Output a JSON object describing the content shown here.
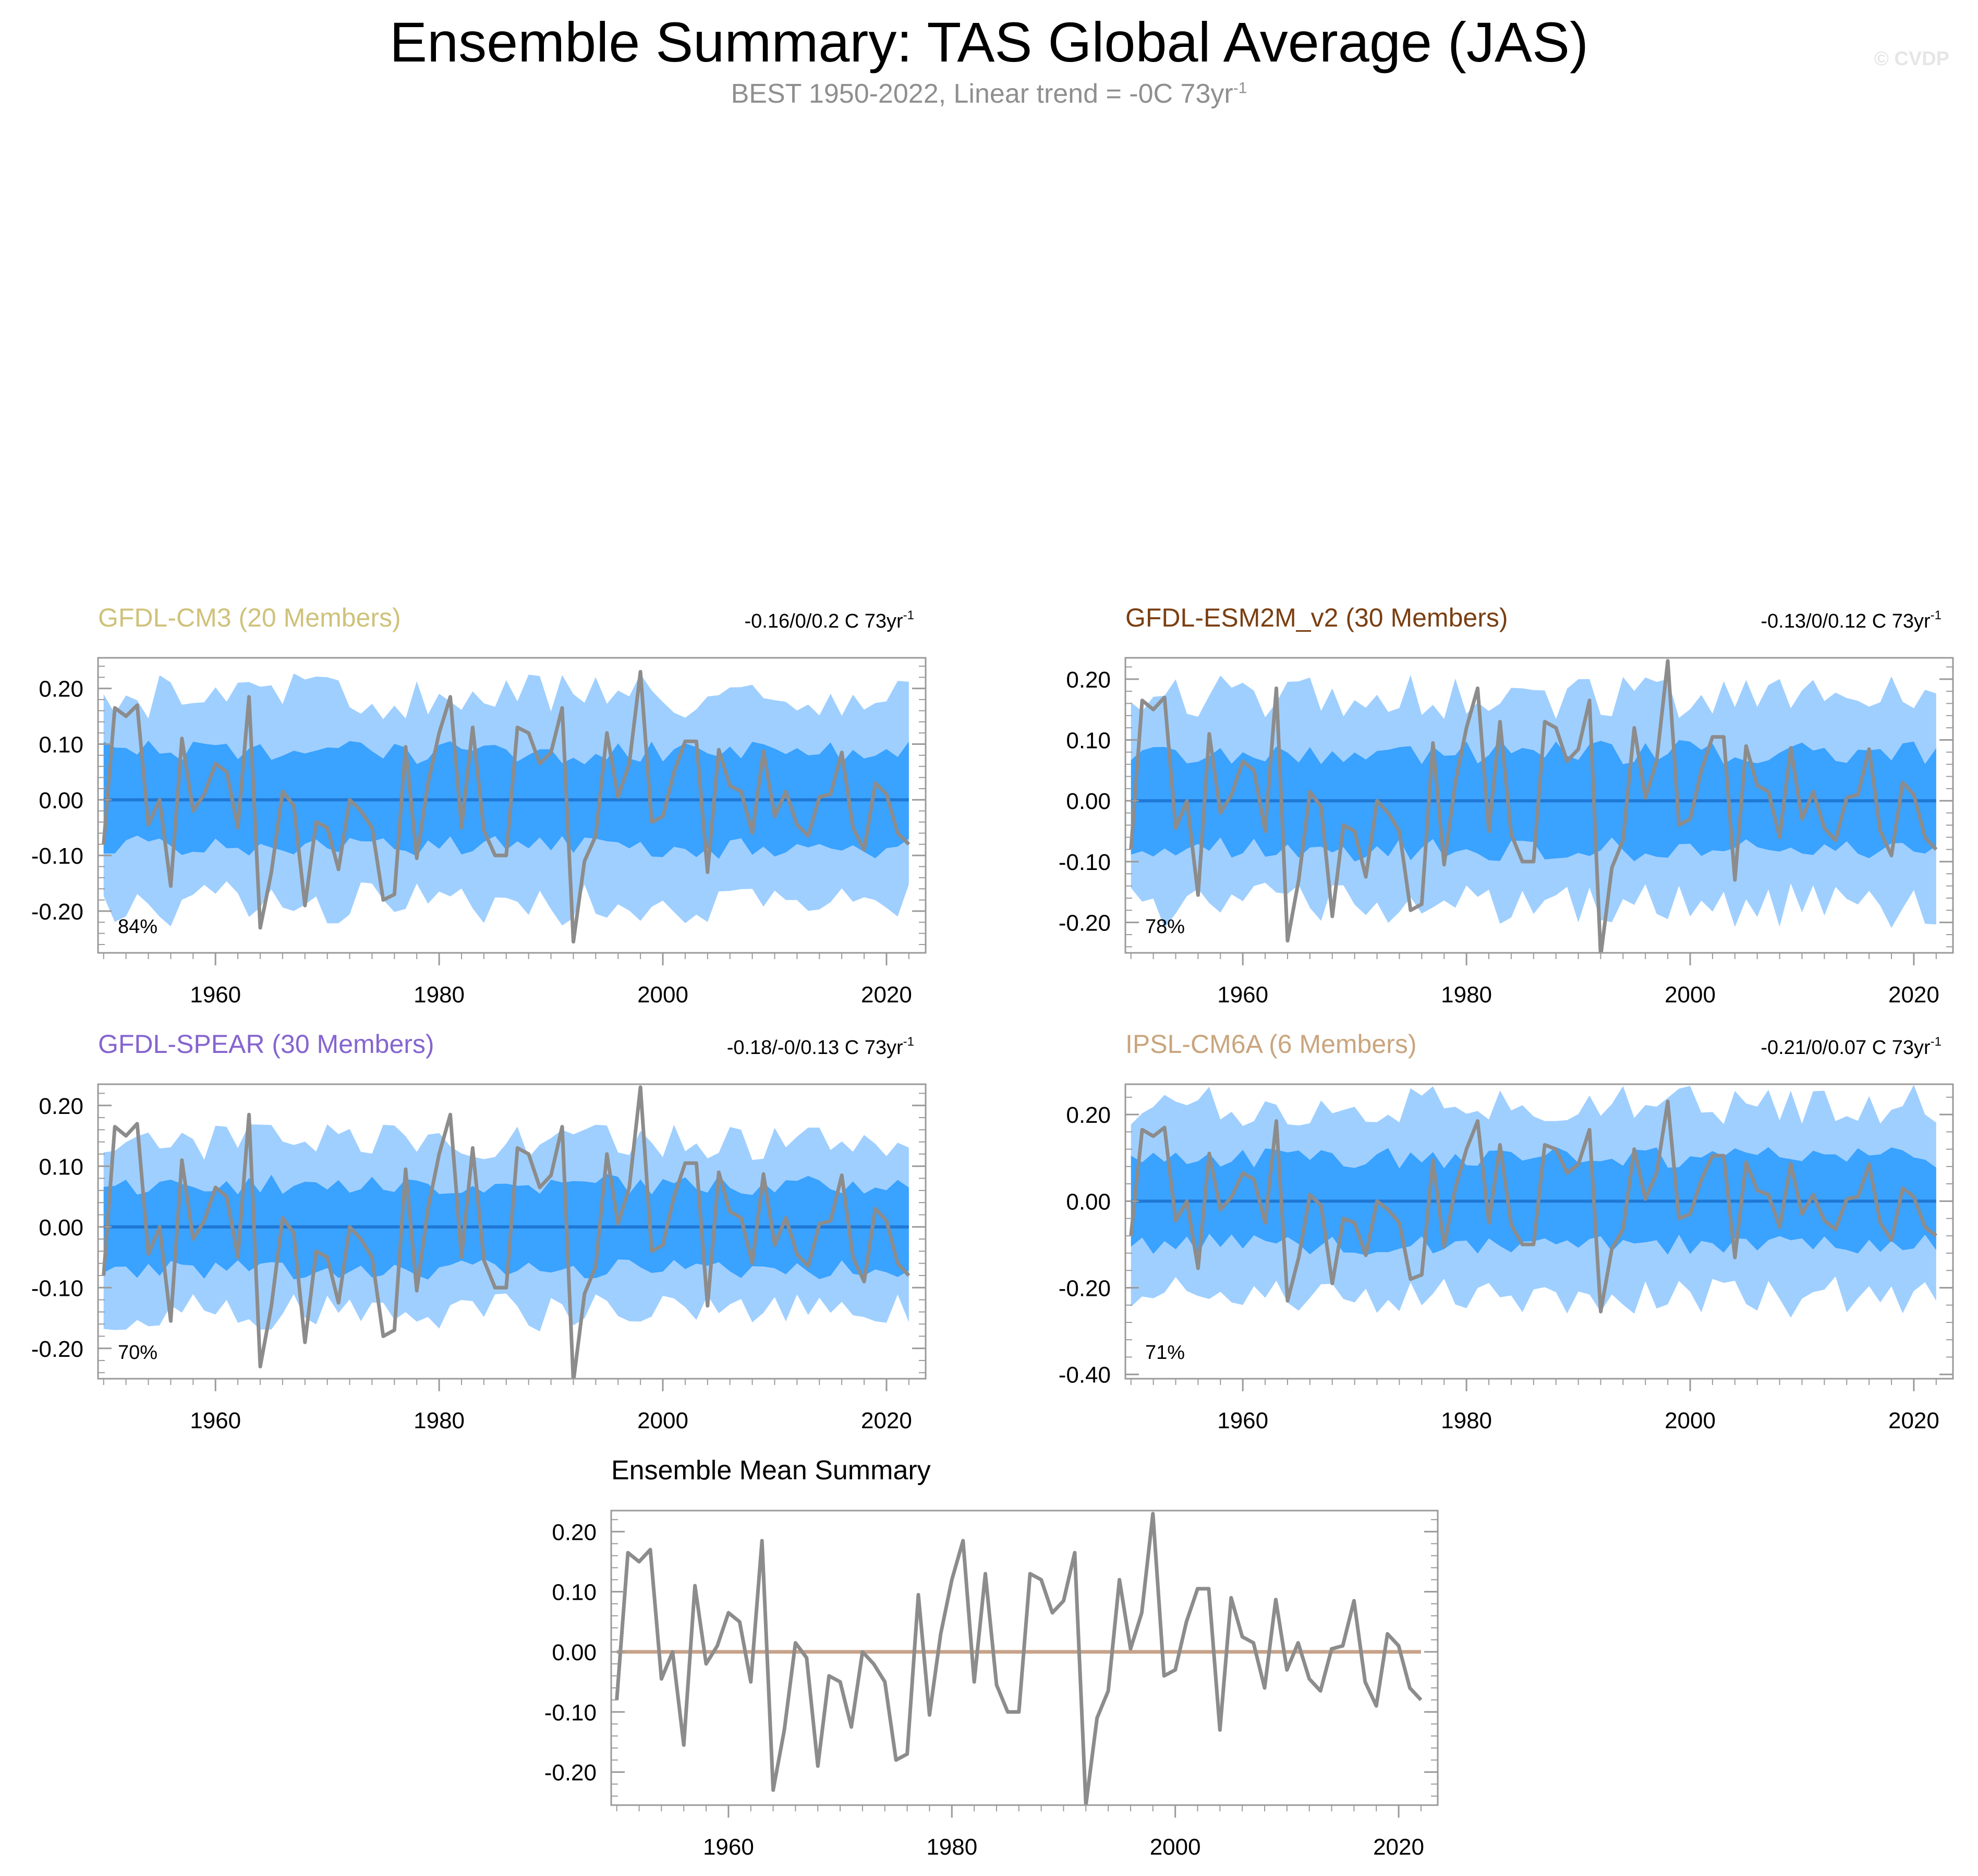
{
  "page": {
    "title": "Ensemble Summary: TAS Global Average (JAS)",
    "subtitle_main": "BEST 1950-2022, Linear trend = -0C 73yr",
    "subtitle_sup": "-1",
    "watermark": "© CVDP"
  },
  "colors": {
    "outer_band": "#9fcfff",
    "inner_band": "#3aa2ff",
    "ensemble_mean_line": "#1f78d4",
    "observed_line": "#8c8c8c",
    "summary_mean_line": "#c7a38a",
    "frame": "#9a9a9a"
  },
  "chart_data": [
    {
      "id": "cm3",
      "type": "area",
      "title": "GFDL-CM3 (20 Members)",
      "title_color": "#cfc27a",
      "trend_label": "-0.16/0/0.2 C 73yr",
      "trend_sup": "-1",
      "percent_label": "84%",
      "xlim": [
        1949.5,
        2023.5
      ],
      "ylim": [
        -0.275,
        0.255
      ],
      "yticks": [
        0.2,
        0.1,
        0.0,
        -0.1,
        -0.2
      ],
      "ytick_labels": [
        "0.20",
        "0.10",
        "0.00",
        "-0.10",
        "-0.20"
      ],
      "xticks": [
        1960,
        1980,
        2000,
        2020
      ],
      "xtick_labels": [
        "1960",
        "1980",
        "2000",
        "2020"
      ],
      "outer_amp": 0.185,
      "inner_amp": 0.085,
      "band_seed": 1,
      "ensemble_mean": 0.0
    },
    {
      "id": "esm2m",
      "type": "area",
      "title": "GFDL-ESM2M_v2 (30 Members)",
      "title_color": "#7a3f12",
      "trend_label": "-0.13/0/0.12 C 73yr",
      "trend_sup": "-1",
      "percent_label": "78%",
      "xlim": [
        1949.5,
        2023.5
      ],
      "ylim": [
        -0.25,
        0.235
      ],
      "yticks": [
        0.2,
        0.1,
        0.0,
        -0.1,
        -0.2
      ],
      "ytick_labels": [
        "0.20",
        "0.10",
        "0.00",
        "-0.10",
        "-0.20"
      ],
      "xticks": [
        1960,
        1980,
        2000,
        2020
      ],
      "xtick_labels": [
        "1960",
        "1980",
        "2000",
        "2020"
      ],
      "outer_amp": 0.17,
      "inner_amp": 0.08,
      "band_seed": 2,
      "ensemble_mean": 0.0
    },
    {
      "id": "spear",
      "type": "area",
      "title": "GFDL-SPEAR (30 Members)",
      "title_color": "#8565d0",
      "trend_label": "-0.18/-0/0.13 C 73yr",
      "trend_sup": "-1",
      "percent_label": "70%",
      "xlim": [
        1949.5,
        2023.5
      ],
      "ylim": [
        -0.25,
        0.235
      ],
      "yticks": [
        0.2,
        0.1,
        0.0,
        -0.1,
        -0.2
      ],
      "ytick_labels": [
        "0.20",
        "0.10",
        "0.00",
        "-0.10",
        "-0.20"
      ],
      "xticks": [
        1960,
        1980,
        2000,
        2020
      ],
      "xtick_labels": [
        "1960",
        "1980",
        "2000",
        "2020"
      ],
      "outer_amp": 0.14,
      "inner_amp": 0.07,
      "band_seed": 3,
      "ensemble_mean": 0.0
    },
    {
      "id": "ipsl",
      "type": "area",
      "title": "IPSL-CM6A (6 Members)",
      "title_color": "#c9a57e",
      "trend_label": "-0.21/0/0.07 C 73yr",
      "trend_sup": "-1",
      "percent_label": "71%",
      "xlim": [
        1949.5,
        2023.5
      ],
      "ylim": [
        -0.41,
        0.27
      ],
      "yticks": [
        0.2,
        0.0,
        -0.2,
        -0.4
      ],
      "ytick_labels": [
        "0.20",
        "0.00",
        "-0.20",
        "-0.40"
      ],
      "xticks": [
        1960,
        1980,
        2000,
        2020
      ],
      "xtick_labels": [
        "1960",
        "1980",
        "2000",
        "2020"
      ],
      "outer_amp": 0.22,
      "inner_amp": 0.1,
      "band_seed": 4,
      "ensemble_mean": 0.0
    },
    {
      "id": "summary",
      "type": "line",
      "title": "Ensemble Mean Summary",
      "title_color": "#000000",
      "xlim": [
        1949.5,
        2023.5
      ],
      "ylim": [
        -0.255,
        0.235
      ],
      "yticks": [
        0.2,
        0.1,
        0.0,
        -0.1,
        -0.2
      ],
      "ytick_labels": [
        "0.20",
        "0.10",
        "0.00",
        "-0.10",
        "-0.20"
      ],
      "xticks": [
        1960,
        1980,
        2000,
        2020
      ],
      "xtick_labels": [
        "1960",
        "1980",
        "2000",
        "2020"
      ],
      "ensemble_mean": 0.0
    }
  ],
  "observed": {
    "name": "BEST",
    "years": [
      1950,
      1951,
      1952,
      1953,
      1954,
      1955,
      1956,
      1957,
      1958,
      1959,
      1960,
      1961,
      1962,
      1963,
      1964,
      1965,
      1966,
      1967,
      1968,
      1969,
      1970,
      1971,
      1972,
      1973,
      1974,
      1975,
      1976,
      1977,
      1978,
      1979,
      1980,
      1981,
      1982,
      1983,
      1984,
      1985,
      1986,
      1987,
      1988,
      1989,
      1990,
      1991,
      1992,
      1993,
      1994,
      1995,
      1996,
      1997,
      1998,
      1999,
      2000,
      2001,
      2002,
      2003,
      2004,
      2005,
      2006,
      2007,
      2008,
      2009,
      2010,
      2011,
      2012,
      2013,
      2014,
      2015,
      2016,
      2017,
      2018,
      2019,
      2020,
      2021,
      2022
    ],
    "values": [
      -0.08,
      0.165,
      0.15,
      0.17,
      -0.045,
      0.0,
      -0.155,
      0.11,
      -0.02,
      0.01,
      0.065,
      0.05,
      -0.05,
      0.185,
      -0.23,
      -0.13,
      0.015,
      -0.01,
      -0.19,
      -0.04,
      -0.05,
      -0.125,
      0.0,
      -0.02,
      -0.05,
      -0.18,
      -0.17,
      0.095,
      -0.105,
      0.03,
      0.12,
      0.185,
      -0.05,
      0.13,
      -0.055,
      -0.1,
      -0.1,
      0.13,
      0.12,
      0.065,
      0.085,
      0.165,
      -0.255,
      -0.11,
      -0.065,
      0.12,
      0.005,
      0.065,
      0.23,
      -0.04,
      -0.03,
      0.05,
      0.105,
      0.105,
      -0.13,
      0.09,
      0.025,
      0.015,
      -0.06,
      0.087,
      -0.03,
      0.015,
      -0.045,
      -0.065,
      0.005,
      0.01,
      0.085,
      -0.05,
      -0.09,
      0.03,
      0.01,
      -0.06,
      -0.08
    ]
  }
}
